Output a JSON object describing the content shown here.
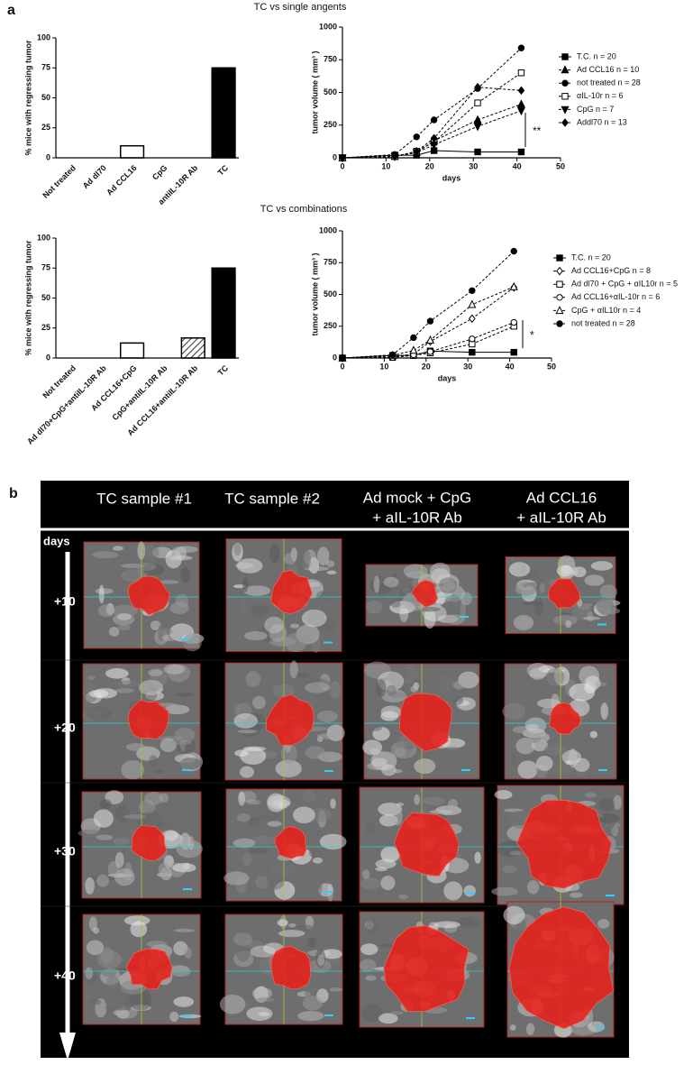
{
  "panel_labels": [
    "a",
    "b"
  ],
  "headings": [
    "TC vs single angents",
    "TC vs combinations"
  ],
  "chart_data": [
    {
      "type": "bar",
      "ylabel": "% mice with regressing tumor",
      "categories": [
        "Not treated",
        "Ad dl70",
        "Ad CCL16",
        "CpG",
        "antiIL-10R Ab",
        "TC"
      ],
      "values": [
        0,
        0,
        10,
        0,
        0,
        75
      ],
      "colors": [
        "#ffffff",
        "#ffffff",
        "#ffffff",
        "#ffffff",
        "#ffffff",
        "#000000"
      ],
      "hatch": [
        false,
        false,
        false,
        false,
        false,
        false
      ],
      "ylim": [
        0,
        100
      ],
      "yticks": [
        0,
        25,
        50,
        75,
        100
      ]
    },
    {
      "type": "line",
      "xlabel": "days",
      "ylabel": "tumor volume ( mm³ )",
      "x": [
        0,
        12,
        17,
        21,
        31,
        41
      ],
      "series": [
        {
          "name": "T.C. n = 20",
          "marker": "square",
          "dashed": false,
          "values": [
            0,
            20,
            20,
            55,
            45,
            45
          ]
        },
        {
          "name": "Ad CCL16 n = 10",
          "marker": "triangle",
          "dashed": true,
          "values": [
            0,
            10,
            40,
            130,
            290,
            410
          ]
        },
        {
          "name": "not treated n = 28",
          "marker": "circle",
          "dashed": true,
          "values": [
            0,
            25,
            160,
            290,
            530,
            840
          ]
        },
        {
          "name": "αIL-10r n = 6",
          "marker": "open-square",
          "dashed": true,
          "values": [
            0,
            10,
            50,
            120,
            420,
            650
          ]
        },
        {
          "name": "CpG n = 7",
          "marker": "inverted-triangle",
          "dashed": true,
          "values": [
            0,
            10,
            40,
            100,
            240,
            360
          ]
        },
        {
          "name": "Addl70 n = 13",
          "marker": "diamond",
          "dashed": true,
          "values": [
            0,
            10,
            50,
            150,
            540,
            515
          ]
        }
      ],
      "annotation": "**",
      "xlim": [
        0,
        50
      ],
      "xticks": [
        0,
        10,
        20,
        30,
        40,
        50
      ],
      "ylim": [
        0,
        1000
      ],
      "yticks": [
        0,
        250,
        500,
        750,
        1000
      ]
    },
    {
      "type": "bar",
      "ylabel": "% mice with regressing tumor",
      "categories": [
        "Not treated",
        "Ad dl70+CpG+antiIL-10R Ab",
        "Ad CCL16+CpG",
        "CpG+antiIL-10R Ab",
        "Ad CCL16+antiIL-10R Ab",
        "TC"
      ],
      "values": [
        0,
        0,
        12.5,
        0,
        16.7,
        75
      ],
      "colors": [
        "#ffffff",
        "#ffffff",
        "#ffffff",
        "#ffffff",
        "#ffffff",
        "#000000"
      ],
      "hatch": [
        false,
        false,
        false,
        false,
        true,
        false
      ],
      "ylim": [
        0,
        100
      ],
      "yticks": [
        0,
        25,
        50,
        75,
        100
      ]
    },
    {
      "type": "line",
      "xlabel": "days",
      "ylabel": "tumor volume ( mm³ )",
      "x": [
        0,
        12,
        17,
        21,
        31,
        41
      ],
      "series": [
        {
          "name": "T.C. n = 20",
          "marker": "square",
          "dashed": false,
          "values": [
            0,
            20,
            20,
            55,
            45,
            45
          ]
        },
        {
          "name": "Ad CCL16+CpG n = 8",
          "marker": "open-diamond",
          "dashed": true,
          "values": [
            0,
            10,
            30,
            130,
            310,
            555
          ]
        },
        {
          "name": "Ad dl70 + CpG + αIL10r n = 5",
          "marker": "open-square",
          "dashed": true,
          "values": [
            0,
            5,
            20,
            40,
            110,
            250
          ]
        },
        {
          "name": "Ad CCL16+αIL-10r n = 6",
          "marker": "open-circle",
          "dashed": true,
          "values": [
            0,
            5,
            25,
            50,
            150,
            280
          ]
        },
        {
          "name": "CpG + αIL10r n = 4",
          "marker": "open-triangle",
          "dashed": true,
          "values": [
            0,
            20,
            60,
            140,
            420,
            560
          ]
        },
        {
          "name": "not treated n = 28",
          "marker": "circle",
          "dashed": true,
          "values": [
            0,
            25,
            160,
            290,
            530,
            840
          ]
        }
      ],
      "annotation": "*",
      "xlim": [
        0,
        50
      ],
      "xticks": [
        0,
        10,
        20,
        30,
        40,
        50
      ],
      "ylim": [
        0,
        1000
      ],
      "yticks": [
        0,
        250,
        500,
        750,
        1000
      ]
    }
  ],
  "panel_b": {
    "columns": [
      [
        "TC sample #1"
      ],
      [
        "TC sample #2"
      ],
      [
        "Ad mock + CpG",
        "+ aIL-10R Ab"
      ],
      [
        "Ad CCL16",
        "+ aIL-10R Ab"
      ]
    ],
    "axis_label": "days",
    "rows": [
      "+10",
      "+20",
      "+30",
      "+40"
    ]
  }
}
